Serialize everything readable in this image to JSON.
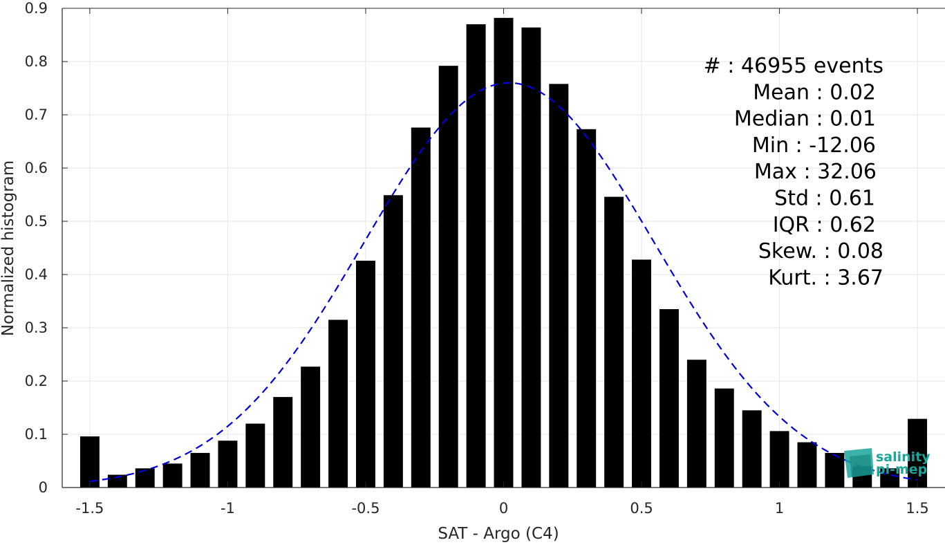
{
  "chart_data": {
    "type": "bar",
    "xlabel": "SAT - Argo (C4)",
    "ylabel": "Normalized histogram",
    "xlim": [
      -1.6,
      1.6
    ],
    "ylim": [
      0,
      0.9
    ],
    "x_ticks": [
      -1.5,
      -1,
      -0.5,
      0,
      0.5,
      1,
      1.5
    ],
    "x_tick_labels": [
      "-1.5",
      "-1",
      "-0.5",
      "0",
      "0.5",
      "1",
      "1.5"
    ],
    "y_ticks": [
      0,
      0.1,
      0.2,
      0.3,
      0.4,
      0.5,
      0.6,
      0.7,
      0.8,
      0.9
    ],
    "y_tick_labels": [
      "0",
      "0.1",
      "0.2",
      "0.3",
      "0.4",
      "0.5",
      "0.6",
      "0.7",
      "0.8",
      "0.9"
    ],
    "grid": true,
    "bar_color": "#000000",
    "series": [
      {
        "type": "bar",
        "x": [
          -1.5,
          -1.4,
          -1.3,
          -1.2,
          -1.1,
          -1.0,
          -0.9,
          -0.8,
          -0.7,
          -0.6,
          -0.5,
          -0.4,
          -0.3,
          -0.2,
          -0.1,
          0.0,
          0.1,
          0.2,
          0.3,
          0.4,
          0.5,
          0.6,
          0.7,
          0.8,
          0.9,
          1.0,
          1.1,
          1.2,
          1.3,
          1.4,
          1.5
        ],
        "values": [
          0.096,
          0.024,
          0.036,
          0.045,
          0.065,
          0.088,
          0.12,
          0.17,
          0.227,
          0.315,
          0.426,
          0.549,
          0.676,
          0.792,
          0.87,
          0.882,
          0.864,
          0.758,
          0.673,
          0.546,
          0.428,
          0.335,
          0.24,
          0.186,
          0.145,
          0.106,
          0.085,
          0.065,
          0.04,
          0.036,
          0.129
        ]
      },
      {
        "type": "line",
        "style": "dashed",
        "color": "#0000dd",
        "fit": "gaussian",
        "mean": 0.02,
        "std": 0.525,
        "peak": 0.76,
        "x_range": [
          -1.5,
          1.5
        ]
      }
    ],
    "annotations": [
      "#  : 46955 events",
      "Mean : 0.02",
      "Median : 0.01",
      "Min : -12.06",
      "Max : 32.06",
      "Std : 0.61",
      "IQR : 0.62",
      "Skew. : 0.08",
      "Kurt. : 3.67"
    ]
  },
  "logo": {
    "line1": "salinity",
    "line2": "pi-mep",
    "color": "#1aa69b"
  }
}
